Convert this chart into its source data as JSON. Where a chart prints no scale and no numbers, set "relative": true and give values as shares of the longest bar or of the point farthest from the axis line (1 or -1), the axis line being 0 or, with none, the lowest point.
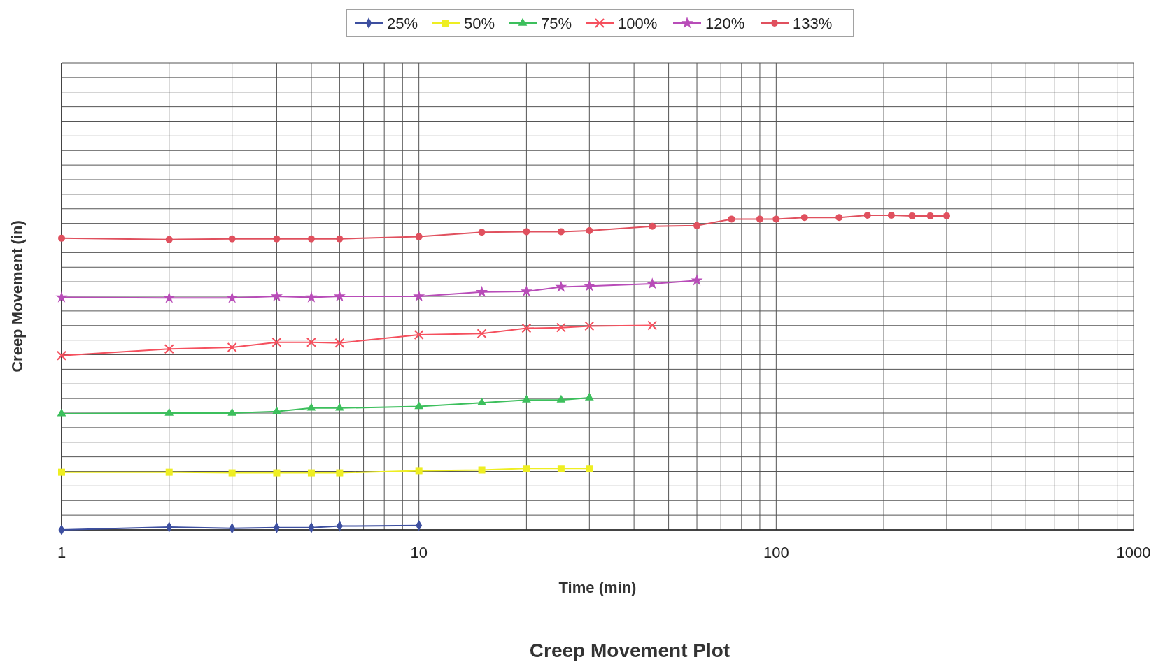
{
  "chart_data": {
    "type": "line",
    "title": "Creep Movement Plot",
    "xlabel": "Time (min)",
    "ylabel": "Creep Movement (in)",
    "relative": true,
    "log": "x",
    "grid": true,
    "legend": "top",
    "xlim": [
      1,
      1000
    ],
    "xticks": [
      1,
      10,
      100,
      1000
    ],
    "series": [
      {
        "name": "25%",
        "color": "#3d4fa0",
        "marker": "diamond",
        "x": [
          1,
          2,
          3,
          4,
          5,
          6,
          10
        ],
        "values": [
          0,
          0.009,
          0.005,
          0.007,
          0.007,
          0.012,
          0.014
        ]
      },
      {
        "name": "50%",
        "color": "#eeee22",
        "marker": "square",
        "x": [
          1,
          2,
          3,
          4,
          5,
          6,
          10,
          15,
          20,
          25,
          30
        ],
        "values": [
          0.183,
          0.183,
          0.181,
          0.181,
          0.181,
          0.181,
          0.188,
          0.19,
          0.195,
          0.195,
          0.195
        ]
      },
      {
        "name": "75%",
        "color": "#3cbf5c",
        "marker": "triangle",
        "x": [
          1,
          2,
          3,
          4,
          5,
          6,
          10,
          15,
          20,
          25,
          30
        ],
        "values": [
          0.369,
          0.371,
          0.371,
          0.376,
          0.387,
          0.387,
          0.392,
          0.404,
          0.413,
          0.413,
          0.42
        ]
      },
      {
        "name": "100%",
        "color": "#f5505e",
        "marker": "cross",
        "x": [
          1,
          2,
          3,
          4,
          5,
          6,
          10,
          15,
          20,
          25,
          30,
          45
        ],
        "values": [
          0.554,
          0.575,
          0.58,
          0.596,
          0.596,
          0.594,
          0.62,
          0.624,
          0.641,
          0.643,
          0.648,
          0.65
        ]
      },
      {
        "name": "120%",
        "color": "#b84cb8",
        "marker": "star",
        "x": [
          1,
          2,
          3,
          4,
          5,
          6,
          10,
          15,
          20,
          25,
          30,
          45,
          60
        ],
        "values": [
          0.739,
          0.737,
          0.737,
          0.742,
          0.739,
          0.742,
          0.742,
          0.756,
          0.758,
          0.772,
          0.775,
          0.782,
          0.793
        ]
      },
      {
        "name": "133%",
        "color": "#e0505e",
        "marker": "circle",
        "x": [
          1,
          2,
          3,
          4,
          5,
          6,
          10,
          15,
          20,
          25,
          30,
          45,
          60,
          75,
          90,
          100,
          120,
          150,
          180,
          210,
          240,
          270,
          300
        ],
        "values": [
          0.927,
          0.923,
          0.925,
          0.925,
          0.925,
          0.925,
          0.932,
          0.946,
          0.948,
          0.948,
          0.951,
          0.965,
          0.967,
          0.988,
          0.988,
          0.988,
          0.993,
          0.993,
          1,
          1,
          0.998,
          0.998,
          0.998
        ]
      }
    ]
  }
}
